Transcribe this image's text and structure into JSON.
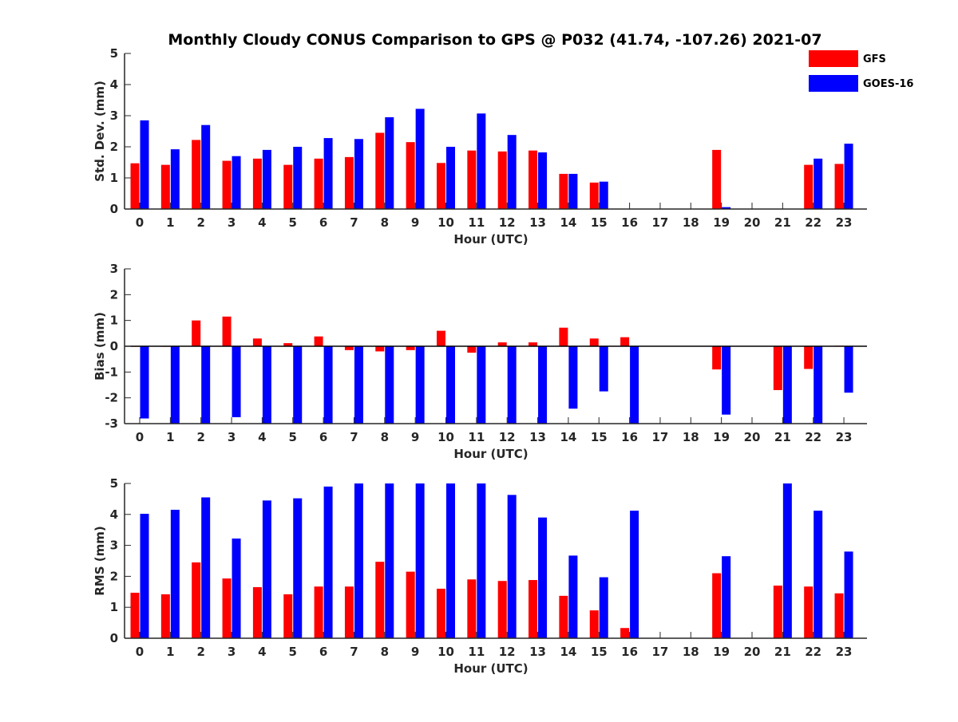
{
  "title": "Monthly Cloudy CONUS Comparison to GPS @ P032 (41.74, -107.26) 2021-07",
  "legend": [
    {
      "name": "GFS",
      "color": "#ff0000"
    },
    {
      "name": "GOES-16",
      "color": "#0000ff"
    }
  ],
  "chart_data": [
    {
      "type": "bar",
      "title": "Monthly Cloudy CONUS Comparison to GPS @ P032 (41.74, -107.26) 2021-07",
      "xlabel": "Hour (UTC)",
      "ylabel": "Std. Dev. (mm)",
      "categories": [
        "0",
        "1",
        "2",
        "3",
        "4",
        "5",
        "6",
        "7",
        "8",
        "9",
        "10",
        "11",
        "12",
        "13",
        "14",
        "15",
        "16",
        "17",
        "18",
        "19",
        "20",
        "21",
        "22",
        "23"
      ],
      "ylim": [
        0,
        5
      ],
      "yticks": [
        0,
        1,
        2,
        3,
        4,
        5
      ],
      "legend_position": "top-right",
      "series": [
        {
          "name": "GFS",
          "color": "#ff0000",
          "values": [
            1.47,
            1.42,
            2.22,
            1.55,
            1.62,
            1.42,
            1.62,
            1.67,
            2.45,
            2.15,
            1.48,
            1.88,
            1.85,
            1.88,
            1.13,
            0.85,
            0,
            0,
            0,
            1.9,
            0,
            0,
            1.42,
            1.45
          ]
        },
        {
          "name": "GOES-16",
          "color": "#0000ff",
          "values": [
            2.85,
            1.92,
            2.7,
            1.7,
            1.9,
            2.0,
            2.28,
            2.25,
            2.95,
            3.22,
            2.0,
            3.07,
            2.38,
            1.82,
            1.13,
            0.88,
            0,
            0,
            0,
            0.06,
            0,
            0,
            1.62,
            2.1
          ]
        }
      ]
    },
    {
      "type": "bar",
      "xlabel": "Hour (UTC)",
      "ylabel": "Bias (mm)",
      "categories": [
        "0",
        "1",
        "2",
        "3",
        "4",
        "5",
        "6",
        "7",
        "8",
        "9",
        "10",
        "11",
        "12",
        "13",
        "14",
        "15",
        "16",
        "17",
        "18",
        "19",
        "20",
        "21",
        "22",
        "23"
      ],
      "ylim": [
        -3,
        3
      ],
      "yticks": [
        -3,
        -2,
        -1,
        0,
        1,
        2,
        3
      ],
      "zero_line": true,
      "series": [
        {
          "name": "GFS",
          "color": "#ff0000",
          "values": [
            -0.02,
            -0.02,
            1.0,
            1.15,
            0.3,
            0.12,
            0.38,
            -0.15,
            -0.2,
            -0.15,
            0.6,
            -0.25,
            0.15,
            0.15,
            0.72,
            0.3,
            0.35,
            0,
            0,
            -0.9,
            0,
            -1.7,
            -0.88,
            0.02
          ]
        },
        {
          "name": "GOES-16",
          "color": "#0000ff",
          "values": [
            -2.8,
            -3.0,
            -3.0,
            -2.75,
            -3.0,
            -3.0,
            -3.0,
            -3.0,
            -3.0,
            -3.0,
            -3.0,
            -3.0,
            -3.0,
            -3.0,
            -2.42,
            -1.75,
            -3.0,
            0,
            0,
            -2.65,
            0,
            -3.0,
            -3.0,
            -1.8
          ]
        }
      ]
    },
    {
      "type": "bar",
      "xlabel": "Hour (UTC)",
      "ylabel": "RMS (mm)",
      "categories": [
        "0",
        "1",
        "2",
        "3",
        "4",
        "5",
        "6",
        "7",
        "8",
        "9",
        "10",
        "11",
        "12",
        "13",
        "14",
        "15",
        "16",
        "17",
        "18",
        "19",
        "20",
        "21",
        "22",
        "23"
      ],
      "ylim": [
        0,
        5
      ],
      "yticks": [
        0,
        1,
        2,
        3,
        4,
        5
      ],
      "series": [
        {
          "name": "GFS",
          "color": "#ff0000",
          "values": [
            1.47,
            1.42,
            2.45,
            1.93,
            1.65,
            1.42,
            1.67,
            1.67,
            2.47,
            2.15,
            1.6,
            1.9,
            1.85,
            1.88,
            1.37,
            0.9,
            0.33,
            0,
            0,
            2.1,
            0,
            1.7,
            1.67,
            1.45
          ]
        },
        {
          "name": "GOES-16",
          "color": "#0000ff",
          "values": [
            4.02,
            4.15,
            4.55,
            3.22,
            4.45,
            4.52,
            4.9,
            5.0,
            5.0,
            5.0,
            5.0,
            5.0,
            4.63,
            3.9,
            2.67,
            1.97,
            4.12,
            0,
            0,
            2.65,
            0,
            5.0,
            4.12,
            2.8
          ]
        }
      ]
    }
  ]
}
